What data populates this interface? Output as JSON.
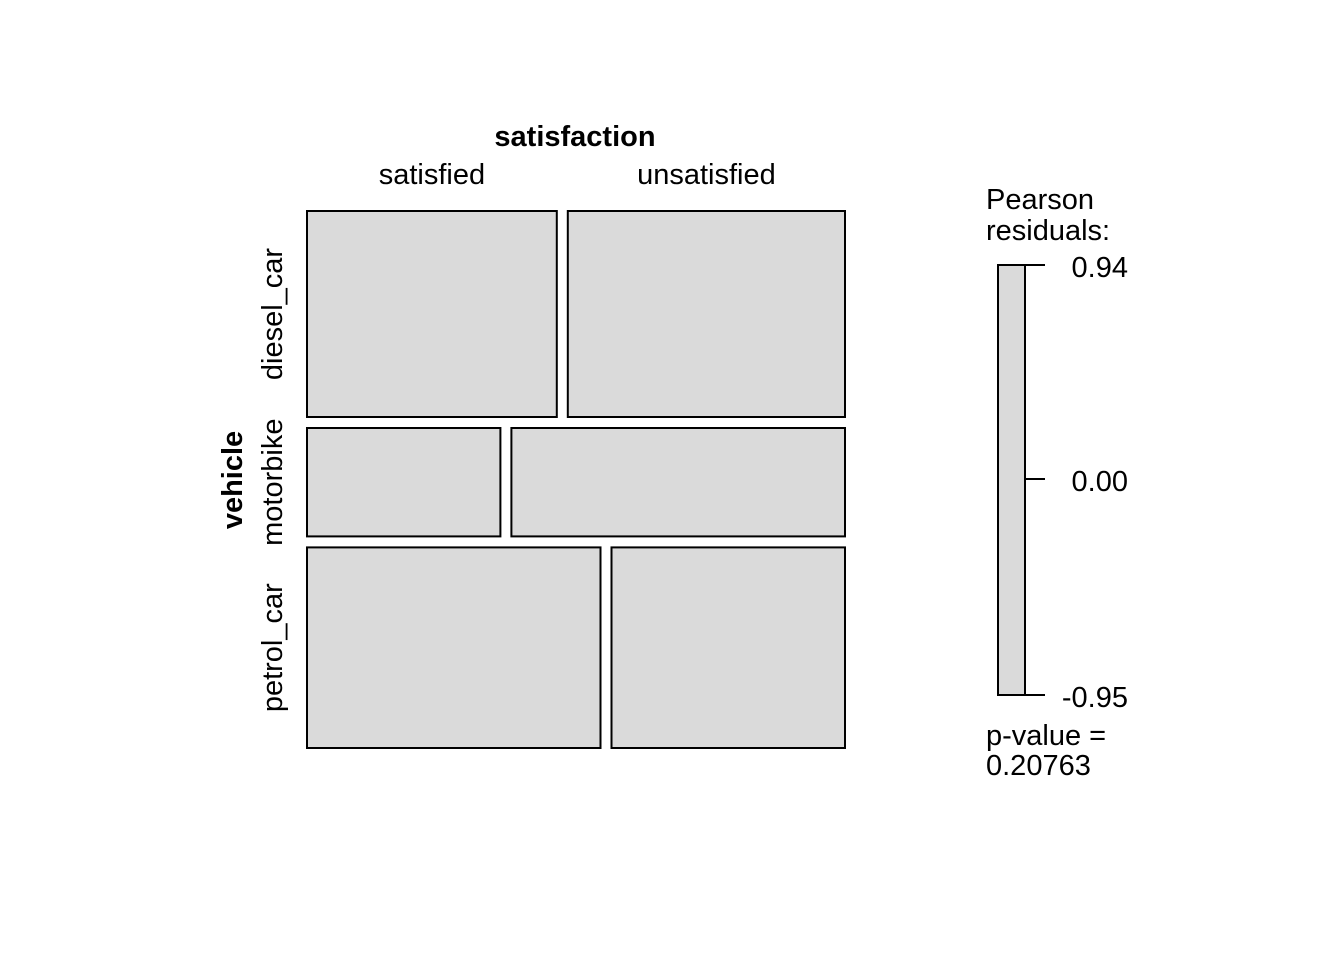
{
  "chart_data": {
    "type": "mosaic",
    "column_variable": "satisfaction",
    "row_variable": "vehicle",
    "columns": [
      "satisfied",
      "unsatisfied"
    ],
    "rows": [
      "diesel_car",
      "motorbike",
      "petrol_car"
    ],
    "row_proportions": [
      0.38,
      0.2,
      0.37
    ],
    "cell_proportions_within_row": [
      [
        0.474,
        0.526
      ],
      [
        0.367,
        0.633
      ],
      [
        0.557,
        0.443
      ]
    ],
    "legend": {
      "title_line1": "Pearson",
      "title_line2": "residuals:",
      "max": 0.94,
      "mid": 0.0,
      "min": -0.95,
      "max_label": "0.94",
      "mid_label": "0.00",
      "min_label": "-0.95",
      "p_value_line1": "p-value =",
      "p_value_line2": "0.20763"
    },
    "fill_color": "#dadada",
    "border_color": "#000000"
  }
}
